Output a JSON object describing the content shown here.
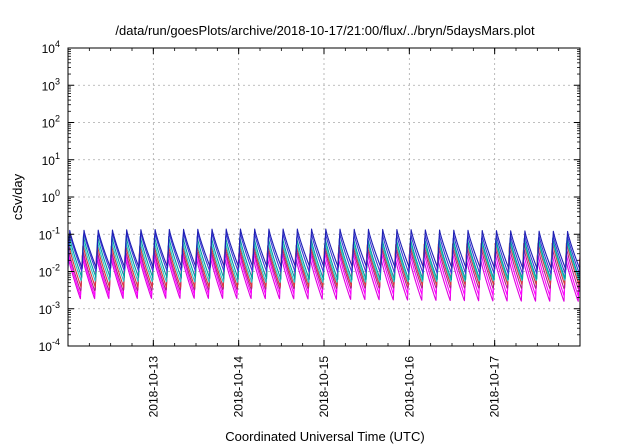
{
  "chart_data": {
    "type": "line",
    "title": "/data/run/goesPlots/archive/2018-10-17/21:00/flux/../bryn/5daysMars.plot",
    "xlabel": "Coordinated Universal Time (UTC)",
    "ylabel": "cSv/day",
    "yscale": "log",
    "ylim": [
      0.0001,
      10000
    ],
    "y_ticks": [
      {
        "value": 0.0001,
        "base": "10",
        "exp": "-4"
      },
      {
        "value": 0.001,
        "base": "10",
        "exp": "-3"
      },
      {
        "value": 0.01,
        "base": "10",
        "exp": "-2"
      },
      {
        "value": 0.1,
        "base": "10",
        "exp": "-1"
      },
      {
        "value": 1,
        "base": "10",
        "exp": "0"
      },
      {
        "value": 10,
        "base": "10",
        "exp": "1"
      },
      {
        "value": 100,
        "base": "10",
        "exp": "2"
      },
      {
        "value": 1000,
        "base": "10",
        "exp": "3"
      },
      {
        "value": 10000,
        "base": "10",
        "exp": "4"
      }
    ],
    "xlim": [
      "2018-10-12T00:00",
      "2018-10-18T00:00"
    ],
    "x_ticks": [
      "2018-10-13",
      "2018-10-14",
      "2018-10-15",
      "2018-10-16",
      "2018-10-17"
    ],
    "grid": true,
    "cycles_per_day": 6,
    "series": [
      {
        "color": "#1f1fb4",
        "peak": 0.13,
        "trough": 0.012
      },
      {
        "color": "#3a3ad8",
        "peak": 0.11,
        "trough": 0.009
      },
      {
        "color": "#00a0a0",
        "peak": 0.085,
        "trough": 0.0065
      },
      {
        "color": "#2bc6c6",
        "peak": 0.07,
        "trough": 0.0052
      },
      {
        "color": "#d93a3a",
        "peak": 0.06,
        "trough": 0.004
      },
      {
        "color": "#b0208a",
        "peak": 0.045,
        "trough": 0.003
      },
      {
        "color": "#ff00ff",
        "peak": 0.035,
        "trough": 0.0022
      },
      {
        "color": "#e000e0",
        "peak": 0.025,
        "trough": 0.0017
      }
    ]
  }
}
